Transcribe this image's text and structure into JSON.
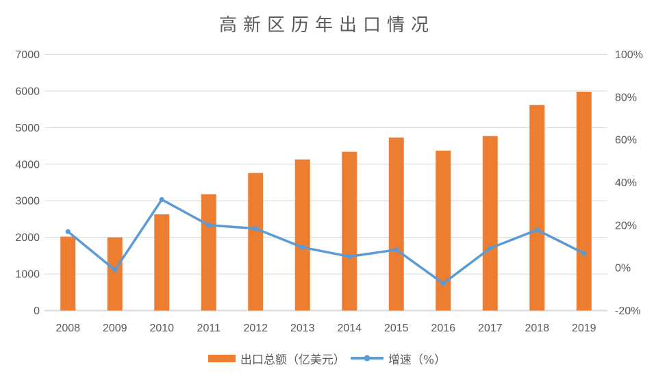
{
  "chart_data": {
    "type": "combo",
    "title": "高新区历年出口情况",
    "categories": [
      "2008",
      "2009",
      "2010",
      "2011",
      "2012",
      "2013",
      "2014",
      "2015",
      "2016",
      "2017",
      "2018",
      "2019"
    ],
    "series": [
      {
        "name": "出口总额（亿美元）",
        "type": "bar",
        "axis": "left",
        "color": "#ED7D31",
        "values": [
          2020,
          2000,
          2630,
          3180,
          3760,
          4130,
          4340,
          4730,
          4370,
          4770,
          5620,
          5980
        ]
      },
      {
        "name": "增速（%）",
        "type": "line",
        "axis": "right",
        "color": "#5B9BD5",
        "values": [
          17,
          -1,
          32,
          20,
          18.4,
          9.6,
          5.3,
          8.5,
          -7.3,
          9.2,
          17.8,
          6.8
        ]
      }
    ],
    "left_axis": {
      "min": 0,
      "max": 7000,
      "step": 1000,
      "ticks": [
        "0",
        "1000",
        "2000",
        "3000",
        "4000",
        "5000",
        "6000",
        "7000"
      ]
    },
    "right_axis": {
      "min": -20,
      "max": 100,
      "step": 20,
      "ticks": [
        "-20%",
        "0%",
        "20%",
        "40%",
        "60%",
        "80%",
        "100%"
      ]
    },
    "grid": true,
    "legend_position": "bottom",
    "colors": {
      "text": "#595959",
      "title": "#595959",
      "gridline": "#D9D9D9",
      "axis_line": "#D9D9D9"
    }
  }
}
